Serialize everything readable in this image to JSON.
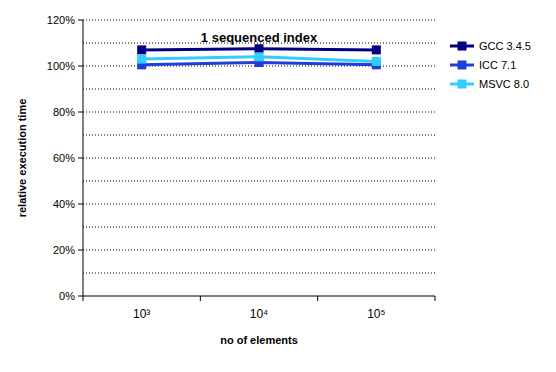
{
  "chart_data": {
    "type": "line",
    "title": "1 sequenced index",
    "x_label": "no of elements",
    "y_label": "relative execution time",
    "categories": [
      "10³",
      "10⁴",
      "10⁵"
    ],
    "series": [
      {
        "name": "GCC 3.4.5",
        "color": "#000080",
        "marker": "square",
        "values": [
          107,
          107.5,
          107
        ]
      },
      {
        "name": "ICC 7.1",
        "color": "#1f3fd8",
        "marker": "square",
        "values": [
          100.5,
          101.5,
          100.5
        ]
      },
      {
        "name": "MSVC 8.0",
        "color": "#33ccff",
        "marker": "square",
        "values": [
          103,
          104,
          102
        ]
      }
    ],
    "ylim": [
      0,
      120
    ],
    "yticks": [
      {
        "value": 0,
        "label": "0%"
      },
      {
        "value": 20,
        "label": "20%"
      },
      {
        "value": 40,
        "label": "40%"
      },
      {
        "value": 60,
        "label": "60%"
      },
      {
        "value": 80,
        "label": "80%"
      },
      {
        "value": 100,
        "label": "100%"
      },
      {
        "value": 120,
        "label": "120%"
      }
    ],
    "grid": true,
    "legend": "right"
  }
}
